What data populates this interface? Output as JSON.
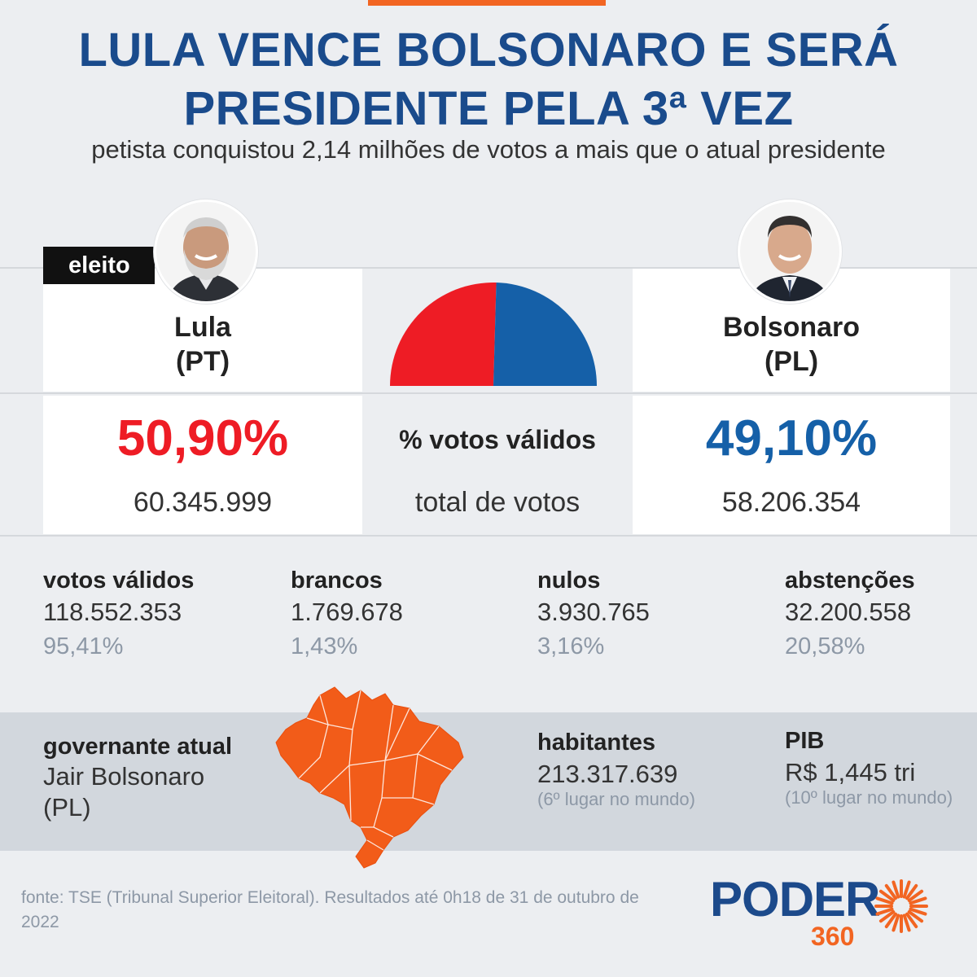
{
  "header": {
    "title_line1": "LULA VENCE BOLSONARO E SERÁ",
    "title_line2": "PRESIDENTE PELA 3ª VEZ",
    "subtitle": "petista conquistou 2,14 milhões de votos a mais que o atual presidente"
  },
  "badge": "eleito",
  "candidates": [
    {
      "name": "Lula",
      "party": "(PT)",
      "pct": "50,90%",
      "votes": "60.345.999",
      "color": "#ee1c25"
    },
    {
      "name": "Bolsonaro",
      "party": "(PL)",
      "pct": "49,10%",
      "votes": "58.206.354",
      "color": "#1560a8"
    }
  ],
  "center_labels": {
    "pct_label": "% votos válidos",
    "total_label": "total de votos"
  },
  "chart_data": {
    "type": "pie",
    "title": "",
    "shape": "semicircle",
    "series": [
      {
        "name": "Lula",
        "value": 50.9,
        "color": "#ee1c25"
      },
      {
        "name": "Bolsonaro",
        "value": 49.1,
        "color": "#1560a8"
      }
    ]
  },
  "stats": [
    {
      "label": "votos válidos",
      "value": "118.552.353",
      "pct": "95,41%"
    },
    {
      "label": "brancos",
      "value": "1.769.678",
      "pct": "1,43%"
    },
    {
      "label": "nulos",
      "value": "3.930.765",
      "pct": "3,16%"
    },
    {
      "label": "abstenções",
      "value": "32.200.558",
      "pct": "20,58%"
    }
  ],
  "country": {
    "governor_label": "governante atual",
    "governor_name": "Jair Bolsonaro",
    "governor_party": "(PL)",
    "population_label": "habitantes",
    "population_value": "213.317.639",
    "population_note": "(6º lugar no mundo)",
    "gdp_label": "PIB",
    "gdp_value": "R$ 1,445 tri",
    "gdp_note": "(10º lugar no mundo)",
    "map_color": "#f25c19"
  },
  "footer": {
    "source": "fonte: TSE (Tribunal Superior Eleitoral). Resultados até 0h18 de 31 de outubro de 2022",
    "logo_word": "PODER",
    "logo_number": "360"
  },
  "colors": {
    "title": "#1a4b8c",
    "accent": "#f26522",
    "logo_blue": "#1c4a8b"
  }
}
